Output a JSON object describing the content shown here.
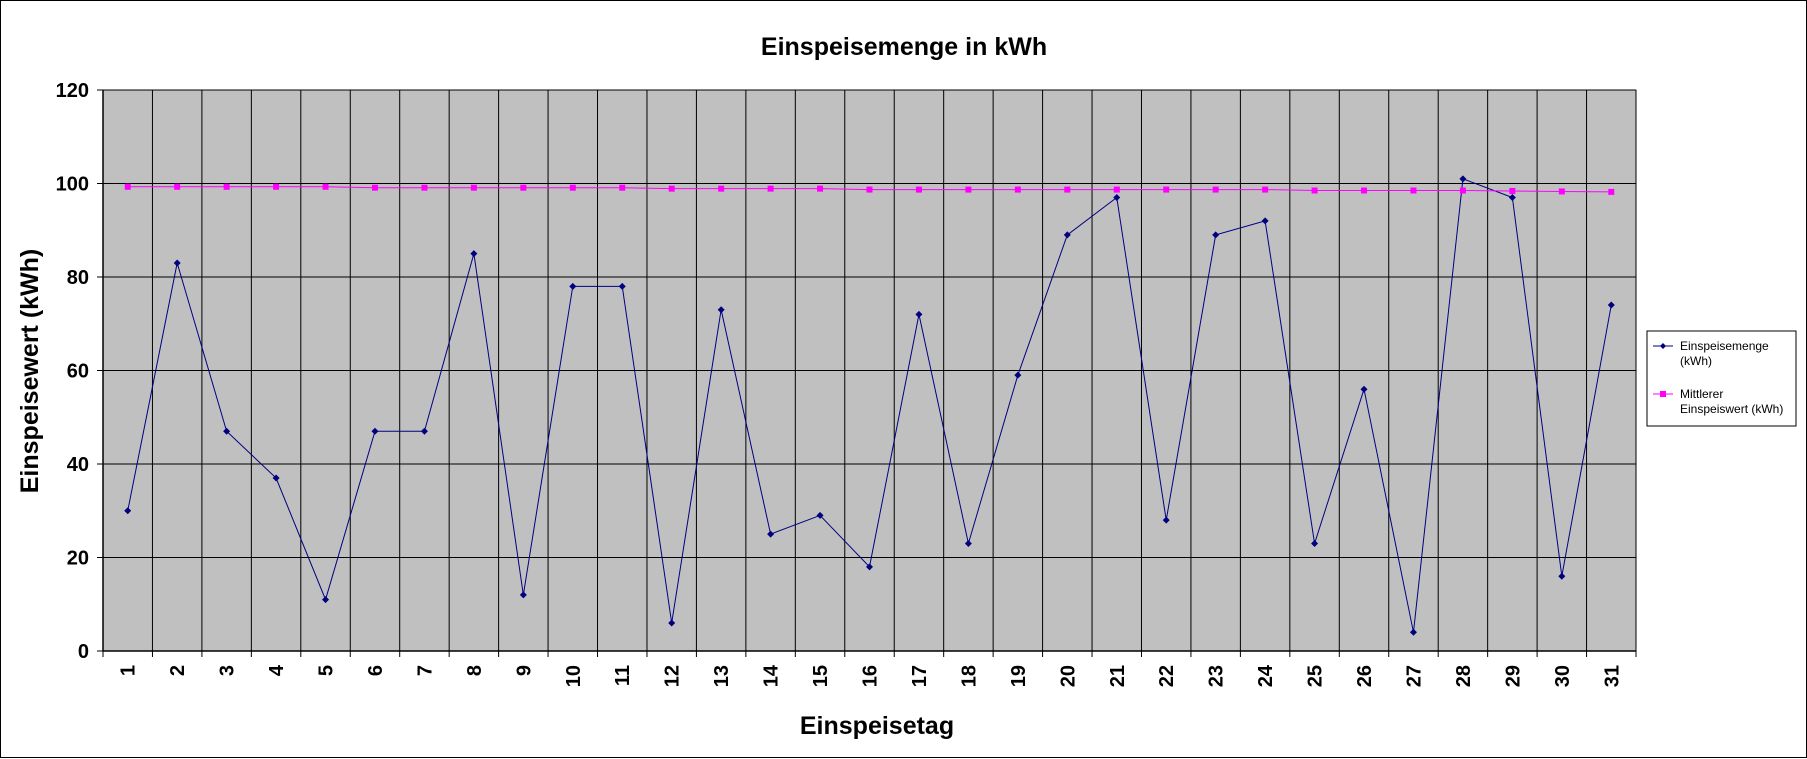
{
  "chart_data": {
    "type": "line",
    "title": "Einspeisemenge in kWh",
    "xlabel": "Einspeisetag",
    "ylabel": "Einspeisewert  (kWh)",
    "categories": [
      "1",
      "2",
      "3",
      "4",
      "5",
      "6",
      "7",
      "8",
      "9",
      "10",
      "11",
      "12",
      "13",
      "14",
      "15",
      "16",
      "17",
      "18",
      "19",
      "20",
      "21",
      "22",
      "23",
      "24",
      "25",
      "26",
      "27",
      "28",
      "29",
      "30",
      "31"
    ],
    "ylim": [
      0,
      120
    ],
    "yticks": [
      "0",
      "20",
      "40",
      "60",
      "80",
      "100",
      "120"
    ],
    "grid": true,
    "legend_position": "right",
    "plot_background": "#c0c0c0",
    "series": [
      {
        "name": "Einspeisemenge (kWh)",
        "legend_lines": [
          "Einspeisemenge",
          "(kWh)"
        ],
        "color": "#000080",
        "marker": "diamond",
        "values": [
          30,
          83,
          47,
          37,
          11,
          47,
          47,
          85,
          12,
          78,
          78,
          6,
          73,
          25,
          29,
          18,
          72,
          23,
          59,
          89,
          97,
          28,
          89,
          92,
          23,
          56,
          4,
          101,
          97,
          16,
          74
        ]
      },
      {
        "name": "Mittlerer Einspeiswert (kWh)",
        "legend_lines": [
          "Mittlerer",
          "Einspeiswert (kWh)"
        ],
        "color": "#ff00ff",
        "marker": "square",
        "values": [
          99.3,
          99.3,
          99.3,
          99.3,
          99.3,
          99.1,
          99.1,
          99.1,
          99.1,
          99.1,
          99.1,
          98.9,
          98.9,
          98.9,
          98.9,
          98.7,
          98.7,
          98.7,
          98.7,
          98.7,
          98.7,
          98.7,
          98.7,
          98.7,
          98.5,
          98.5,
          98.5,
          98.5,
          98.4,
          98.3,
          98.2
        ]
      }
    ]
  }
}
